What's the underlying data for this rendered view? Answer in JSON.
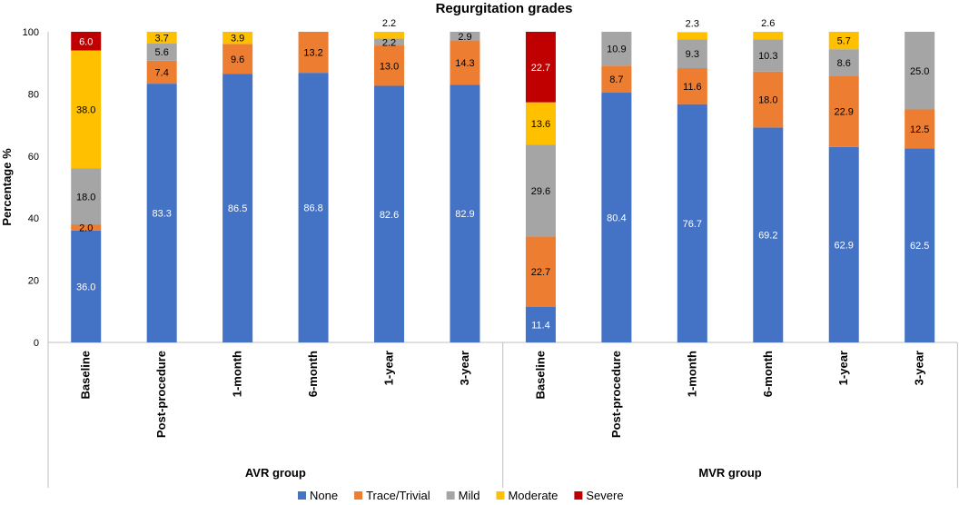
{
  "chart_data": {
    "type": "bar",
    "stacked": true,
    "title": "Regurgitation grades",
    "ylabel": "Percentage %",
    "xlabel": "",
    "ylim": [
      0,
      100
    ],
    "yticks": [
      0,
      20,
      40,
      60,
      80,
      100
    ],
    "groups": [
      {
        "name": "AVR group",
        "categories": [
          "Baseline",
          "Post-procedure",
          "1-month",
          "6-month",
          "1-year",
          "3-year"
        ]
      },
      {
        "name": "MVR group",
        "categories": [
          "Baseline",
          "Post-procedure",
          "1-month",
          "6-month",
          "1-year",
          "3-year"
        ]
      }
    ],
    "series": [
      {
        "name": "None",
        "color": "#4472C4",
        "values": [
          36.0,
          83.3,
          86.5,
          86.8,
          82.6,
          82.9,
          11.4,
          80.4,
          76.7,
          69.2,
          62.9,
          62.5
        ]
      },
      {
        "name": "Trace/Trivial",
        "color": "#ED7D31",
        "values": [
          2.0,
          7.4,
          9.6,
          13.2,
          13.0,
          14.3,
          22.7,
          8.7,
          11.6,
          18.0,
          22.9,
          12.5
        ]
      },
      {
        "name": "Mild",
        "color": "#A5A5A5",
        "values": [
          18.0,
          5.6,
          null,
          null,
          2.2,
          2.9,
          29.6,
          10.9,
          9.3,
          10.3,
          8.6,
          25.0
        ]
      },
      {
        "name": "Moderate",
        "color": "#FFC000",
        "values": [
          38.0,
          3.7,
          3.9,
          null,
          2.2,
          null,
          13.6,
          null,
          2.3,
          2.6,
          5.7,
          null
        ]
      },
      {
        "name": "Severe",
        "color": "#C00000",
        "values": [
          6.0,
          null,
          null,
          null,
          null,
          null,
          22.7,
          null,
          null,
          null,
          null,
          null
        ]
      }
    ],
    "legend_position": "bottom",
    "grid": false
  }
}
